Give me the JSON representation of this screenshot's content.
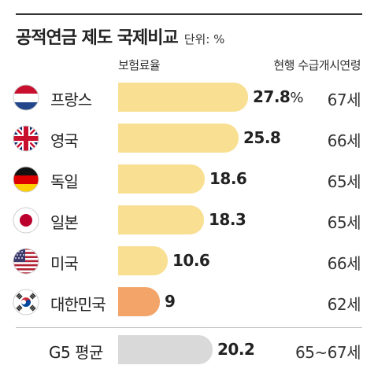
{
  "title": "공적연금 제도 국제비교",
  "unit": "단위: %",
  "colors": {
    "bar": "#f9df92",
    "korea": "#f3a469",
    "average": "#d9d9d9"
  },
  "chart_data": {
    "type": "bar",
    "orientation": "horizontal",
    "title": "공적연금 제도 국제비교",
    "unit": "단위: %",
    "columns": [
      "보험료율",
      "현행 수급개시연령"
    ],
    "xlim": [
      0,
      27.8
    ],
    "rows": [
      {
        "country": "프랑스",
        "flag": "netherlands-flag",
        "value": 27.8,
        "value_label": "27.8",
        "value_suffix": "%",
        "age": "67세",
        "color": "#f9df92"
      },
      {
        "country": "영국",
        "flag": "uk-flag",
        "value": 25.8,
        "value_label": "25.8",
        "value_suffix": "",
        "age": "66세",
        "color": "#f9df92"
      },
      {
        "country": "독일",
        "flag": "germany-flag",
        "value": 18.6,
        "value_label": "18.6",
        "value_suffix": "",
        "age": "65세",
        "color": "#f9df92"
      },
      {
        "country": "일본",
        "flag": "japan-flag",
        "value": 18.3,
        "value_label": "18.3",
        "value_suffix": "",
        "age": "65세",
        "color": "#f9df92"
      },
      {
        "country": "미국",
        "flag": "usa-flag",
        "value": 10.6,
        "value_label": "10.6",
        "value_suffix": "",
        "age": "66세",
        "color": "#f9df92"
      },
      {
        "country": "대한민국",
        "flag": "korea-flag",
        "value": 9,
        "value_label": "9",
        "value_suffix": "",
        "age": "62세",
        "color": "#f3a469"
      }
    ],
    "average": {
      "label": "G5 평균",
      "value": 20.2,
      "value_label": "20.2",
      "age": "65~67세",
      "color": "#d9d9d9"
    }
  }
}
